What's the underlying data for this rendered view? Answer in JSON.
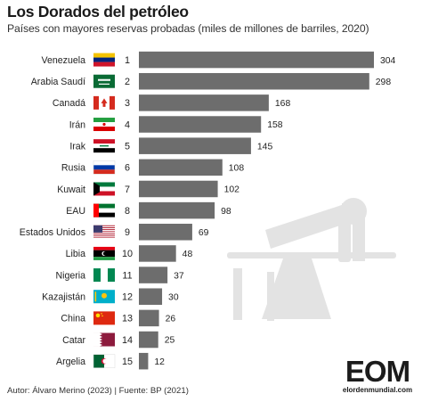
{
  "chart_data": {
    "type": "bar",
    "orientation": "horizontal",
    "title": "Los Dorados del petróleo",
    "subtitle": "Países con mayores reservas probadas (miles de millones de barriles, 2020)",
    "categories": [
      "Venezuela",
      "Arabia Saudí",
      "Canadá",
      "Irán",
      "Irak",
      "Rusia",
      "Kuwait",
      "EAU",
      "Estados Unidos",
      "Libia",
      "Nigeria",
      "Kazajistán",
      "China",
      "Catar",
      "Argelia"
    ],
    "ranks": [
      "1",
      "2",
      "3",
      "4",
      "5",
      "6",
      "7",
      "8",
      "9",
      "10",
      "11",
      "12",
      "13",
      "14",
      "15"
    ],
    "values": [
      304,
      298,
      168,
      158,
      145,
      108,
      102,
      98,
      69,
      48,
      37,
      30,
      26,
      25,
      12
    ],
    "flags": [
      "venezuela-flag",
      "saudi-arabia-flag",
      "canada-flag",
      "iran-flag",
      "iraq-flag",
      "russia-flag",
      "kuwait-flag",
      "uae-flag",
      "usa-flag",
      "libya-flag",
      "nigeria-flag",
      "kazakhstan-flag",
      "china-flag",
      "qatar-flag",
      "algeria-flag"
    ],
    "bar_color": "#6d6d6d",
    "xlim": [
      0,
      304
    ]
  },
  "illustration": "oil-pumpjack-icon",
  "source": "Autor: Álvaro Merino (2023) | Fuente: BP (2021)",
  "logo": {
    "main": "EOM",
    "sub": "elordenmundial.com"
  }
}
